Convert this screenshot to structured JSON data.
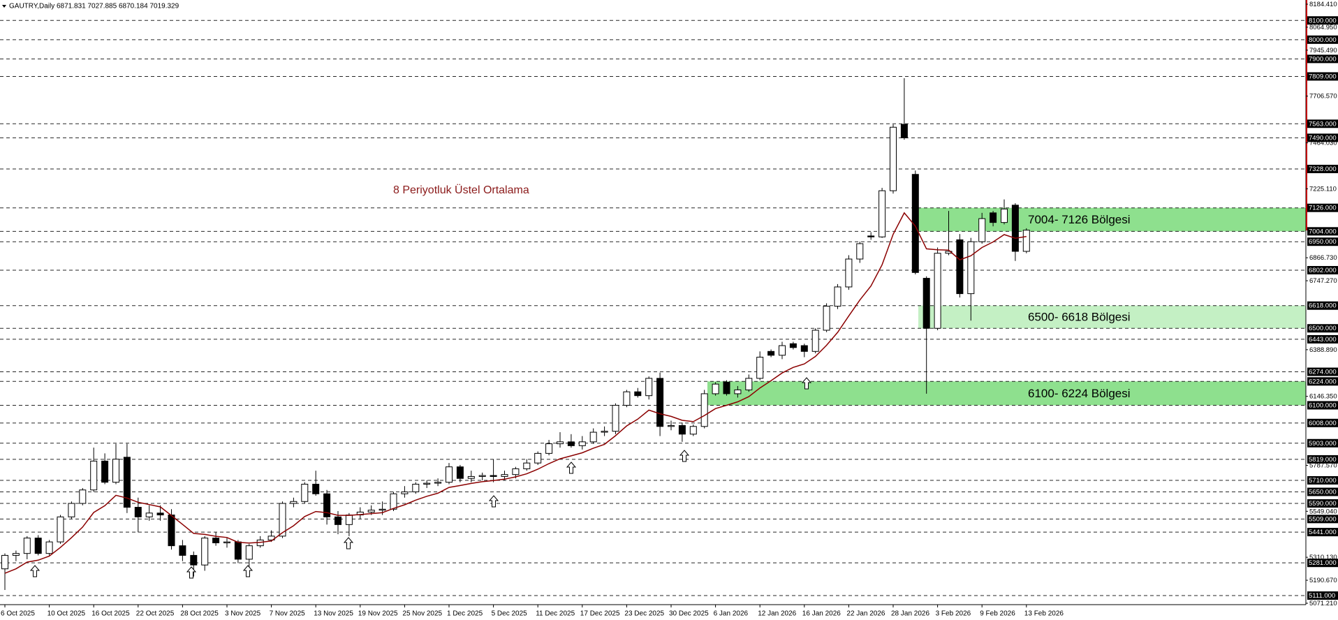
{
  "chart_data": {
    "type": "candlestick",
    "title": "GAUTRY,Daily  6871.831 7027.885 6870.184 7019.329",
    "annotation": "8 Periyotluk Üstel Ortalama",
    "categories": [
      "6 Oct 2025",
      null,
      null,
      null,
      "10 Oct 2025",
      null,
      null,
      null,
      "16 Oct 2025",
      null,
      null,
      null,
      "22 Oct 2025",
      null,
      null,
      null,
      "28 Oct 2025",
      null,
      null,
      null,
      "3 Nov 2025",
      null,
      null,
      null,
      "7 Nov 2025",
      null,
      null,
      null,
      "13 Nov 2025",
      null,
      null,
      null,
      "19 Nov 2025",
      null,
      null,
      null,
      "25 Nov 2025",
      null,
      null,
      null,
      "1 Dec 2025",
      null,
      null,
      null,
      "5 Dec 2025",
      null,
      null,
      null,
      "11 Dec 2025",
      null,
      null,
      null,
      "17 Dec 2025",
      null,
      null,
      null,
      "23 Dec 2025",
      null,
      null,
      null,
      "30 Dec 2025",
      null,
      null,
      null,
      "6 Jan 2026",
      null,
      null,
      null,
      "12 Jan 2026",
      null,
      null,
      null,
      "16 Jan 2026",
      null,
      null,
      null,
      "22 Jan 2026",
      null,
      null,
      null,
      "28 Jan 2026",
      null,
      null,
      null,
      "3 Feb 2026",
      null,
      null,
      null,
      "9 Feb 2026",
      null,
      null,
      null,
      "13 Feb 2026"
    ],
    "open": [
      5250,
      5320,
      5330,
      5410,
      5330,
      5390,
      5520,
      5590,
      5660,
      5810,
      5700,
      5830,
      5570,
      5520,
      5540,
      5530,
      5370,
      5320,
      5270,
      5410,
      5385,
      5390,
      5300,
      5370,
      5400,
      5420,
      5590,
      5600,
      5690,
      5640,
      5520,
      5480,
      5530,
      5545,
      5555,
      5560,
      5640,
      5650,
      5690,
      5695,
      5700,
      5780,
      5720,
      5730,
      5735,
      5730,
      5740,
      5770,
      5800,
      5850,
      5900,
      5910,
      5890,
      5910,
      5960,
      5965,
      6100,
      6170,
      6150,
      6240,
      5990,
      5995,
      5950,
      5990,
      6160,
      6220,
      6160,
      6180,
      6240,
      6380,
      6360,
      6420,
      6410,
      6380,
      6490,
      6615,
      6715,
      6860,
      6980,
      6975,
      7215,
      7560,
      7300,
      6760,
      6500,
      6890,
      6960,
      6680,
      6950,
      7100,
      7050,
      7140,
      6900
    ],
    "high": [
      5330,
      5345,
      5420,
      5425,
      5400,
      5530,
      5600,
      5670,
      5880,
      5850,
      5900,
      5900,
      5620,
      5580,
      5580,
      5560,
      5400,
      5340,
      5420,
      5440,
      5410,
      5400,
      5380,
      5420,
      5450,
      5600,
      5620,
      5700,
      5760,
      5660,
      5550,
      5540,
      5570,
      5580,
      5600,
      5650,
      5680,
      5700,
      5710,
      5720,
      5800,
      5790,
      5760,
      5750,
      5820,
      5760,
      5780,
      5820,
      5860,
      5920,
      5960,
      5950,
      5940,
      5980,
      5990,
      6110,
      6180,
      6190,
      6250,
      6270,
      6020,
      6010,
      6000,
      6180,
      6220,
      6230,
      6200,
      6260,
      6380,
      6390,
      6430,
      6430,
      6420,
      6500,
      6630,
      6730,
      6880,
      6950,
      7000,
      7230,
      7560,
      7800,
      7320,
      6770,
      6920,
      7110,
      6990,
      6970,
      7100,
      7110,
      7170,
      7150,
      7020
    ],
    "low": [
      5140,
      5290,
      5300,
      5320,
      5320,
      5380,
      5510,
      5580,
      5650,
      5690,
      5690,
      5540,
      5440,
      5500,
      5500,
      5350,
      5290,
      5210,
      5240,
      5370,
      5360,
      5280,
      5230,
      5360,
      5390,
      5410,
      5570,
      5590,
      5630,
      5480,
      5430,
      5420,
      5510,
      5530,
      5530,
      5550,
      5620,
      5640,
      5670,
      5680,
      5690,
      5700,
      5700,
      5710,
      5700,
      5710,
      5720,
      5760,
      5790,
      5840,
      5880,
      5880,
      5870,
      5900,
      5940,
      5950,
      6090,
      6140,
      6130,
      5940,
      5970,
      5910,
      5940,
      5980,
      6150,
      6150,
      6140,
      6170,
      6230,
      6350,
      6340,
      6390,
      6350,
      6370,
      6480,
      6600,
      6700,
      6840,
      6960,
      6970,
      7200,
      7480,
      6780,
      6160,
      6490,
      6880,
      6660,
      6540,
      6940,
      7030,
      7040,
      6850,
      6890
    ],
    "close": [
      5320,
      5330,
      5410,
      5330,
      5390,
      5520,
      5590,
      5660,
      5810,
      5700,
      5820,
      5570,
      5520,
      5540,
      5530,
      5370,
      5320,
      5270,
      5410,
      5385,
      5390,
      5300,
      5370,
      5400,
      5420,
      5590,
      5600,
      5690,
      5640,
      5520,
      5480,
      5530,
      5545,
      5555,
      5560,
      5640,
      5650,
      5690,
      5695,
      5700,
      5780,
      5720,
      5730,
      5735,
      5730,
      5740,
      5770,
      5800,
      5850,
      5900,
      5910,
      5890,
      5910,
      5960,
      5965,
      6100,
      6170,
      6150,
      6240,
      5990,
      5995,
      5950,
      5990,
      6160,
      6210,
      6160,
      6180,
      6240,
      6350,
      6360,
      6410,
      6400,
      6380,
      6490,
      6615,
      6715,
      6860,
      6940,
      6975,
      7215,
      7545,
      7490,
      6790,
      6500,
      6890,
      6900,
      6680,
      6950,
      7070,
      7050,
      7120,
      6900,
      7010
    ],
    "ema": {
      "color": "#8b0000",
      "values": [
        5227,
        5250,
        5285,
        5295,
        5316,
        5361,
        5412,
        5467,
        5543,
        5578,
        5632,
        5618,
        5596,
        5584,
        5572,
        5527,
        5481,
        5434,
        5429,
        5419,
        5413,
        5388,
        5384,
        5388,
        5395,
        5438,
        5474,
        5522,
        5548,
        5542,
        5528,
        5528,
        5532,
        5537,
        5542,
        5564,
        5583,
        5607,
        5627,
        5643,
        5673,
        5683,
        5694,
        5703,
        5709,
        5716,
        5728,
        5744,
        5768,
        5797,
        5822,
        5837,
        5853,
        5877,
        5897,
        5942,
        5993,
        6028,
        6075,
        6056,
        6042,
        6022,
        6015,
        6047,
        6083,
        6100,
        6118,
        6145,
        6190,
        6228,
        6268,
        6297,
        6315,
        6354,
        6412,
        6479,
        6564,
        6647,
        6720,
        6830,
        6989,
        7100,
        7031,
        6913,
        6908,
        6906,
        6856,
        6877,
        6920,
        6949,
        6987,
        6968,
        6977
      ]
    },
    "zones": [
      {
        "from": 7004,
        "to": 7126,
        "label": "7004- 7126 Bölgesi",
        "color": "#8ee08e"
      },
      {
        "from": 6500,
        "to": 6618,
        "label": "6500- 6618 Bölgesi",
        "color": "#c4f0c4"
      },
      {
        "from": 6100,
        "to": 6224,
        "label": "6100- 6224 Bölgesi",
        "color": "#8ee08e"
      }
    ],
    "ylim": [
      5071.21,
      8184.41
    ],
    "yticks": [
      {
        "value": 8184.41,
        "label": "8184.410"
      },
      {
        "value": 8064.95,
        "label": "8064.950"
      },
      {
        "value": 7945.49,
        "label": "7945.490"
      },
      {
        "value": 7706.57,
        "label": "7706.570"
      },
      {
        "value": 7464.03,
        "label": "7464.030"
      },
      {
        "value": 7225.11,
        "label": "7225.110"
      },
      {
        "value": 6866.73,
        "label": "6866.730"
      },
      {
        "value": 6747.27,
        "label": "6747.270"
      },
      {
        "value": 6388.89,
        "label": "6388.890"
      },
      {
        "value": 6146.35,
        "label": "6146.350"
      },
      {
        "value": 5787.57,
        "label": "5787.570"
      },
      {
        "value": 5549.04,
        "label": "5549.040"
      },
      {
        "value": 5310.13,
        "label": "5310.130"
      },
      {
        "value": 5190.67,
        "label": "5190.670"
      },
      {
        "value": 5071.21,
        "label": "5071.210"
      }
    ],
    "levels": [
      {
        "value": 8100,
        "label": "8100.000"
      },
      {
        "value": 8000,
        "label": "8000.000"
      },
      {
        "value": 7900,
        "label": "7900.000"
      },
      {
        "value": 7809,
        "label": "7809.000"
      },
      {
        "value": 7563,
        "label": "7563.000"
      },
      {
        "value": 7490,
        "label": "7490.000"
      },
      {
        "value": 7328,
        "label": "7328.000"
      },
      {
        "value": 7126,
        "label": "7126.000"
      },
      {
        "value": 7004,
        "label": "7004.000"
      },
      {
        "value": 6950,
        "label": "6950.000"
      },
      {
        "value": 6802,
        "label": "6802.000"
      },
      {
        "value": 6618,
        "label": "6618.000"
      },
      {
        "value": 6500,
        "label": "6500.000"
      },
      {
        "value": 6443,
        "label": "6443.000"
      },
      {
        "value": 6274,
        "label": "6274.000"
      },
      {
        "value": 6224,
        "label": "6224.000"
      },
      {
        "value": 6100,
        "label": "6100.000"
      },
      {
        "value": 6008,
        "label": "6008.000"
      },
      {
        "value": 5903,
        "label": "5903.000"
      },
      {
        "value": 5819,
        "label": "5819.000"
      },
      {
        "value": 5710,
        "label": "5710.000"
      },
      {
        "value": 5650,
        "label": "5650.000"
      },
      {
        "value": 5590,
        "label": "5590.000"
      },
      {
        "value": 5509,
        "label": "5509.000"
      },
      {
        "value": 5441,
        "label": "5441.000"
      },
      {
        "value": 5281,
        "label": "5281.000"
      },
      {
        "value": 5111,
        "label": "5111.000"
      }
    ]
  }
}
